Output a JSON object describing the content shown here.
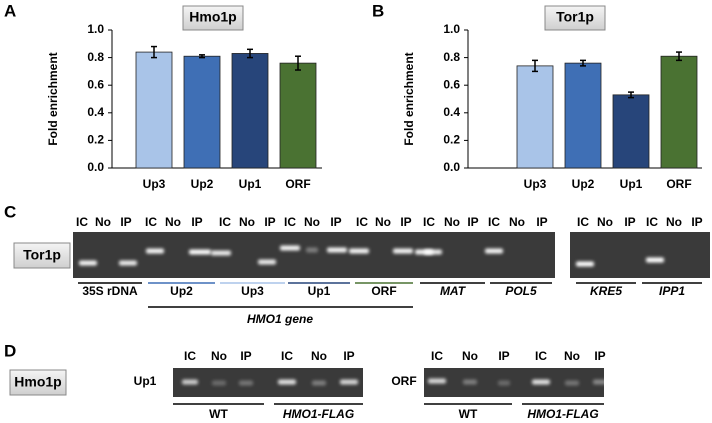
{
  "chart_data": [
    {
      "type": "bar",
      "panel": "A",
      "title": "Hmo1p",
      "ylabel": "Fold enrichment",
      "categories": [
        "Up3",
        "Up2",
        "Up1",
        "ORF"
      ],
      "values": [
        0.84,
        0.81,
        0.83,
        0.76
      ],
      "errors": [
        0.04,
        0.01,
        0.03,
        0.05
      ],
      "colors": [
        "#a9c4e8",
        "#3f6fb5",
        "#27457a",
        "#4a7232"
      ],
      "ylim": [
        0,
        1
      ],
      "yticks": [
        {
          "value": 0,
          "label": "0.0"
        },
        {
          "value": 0.2,
          "label": "0.2"
        },
        {
          "value": 0.4,
          "label": "0.4"
        },
        {
          "value": 0.6,
          "label": "0.6"
        },
        {
          "value": 0.8,
          "label": "0.8"
        },
        {
          "value": 1,
          "label": "1.0"
        }
      ]
    },
    {
      "type": "bar",
      "panel": "B",
      "title": "Tor1p",
      "ylabel": "Fold enrichment",
      "categories": [
        "Up3",
        "Up2",
        "Up1",
        "ORF"
      ],
      "values": [
        0.74,
        0.76,
        0.53,
        0.81
      ],
      "errors": [
        0.04,
        0.02,
        0.02,
        0.03
      ],
      "colors": [
        "#a9c4e8",
        "#3f6fb5",
        "#27457a",
        "#4a7232"
      ],
      "ylim": [
        0,
        1
      ],
      "yticks": [
        {
          "value": 0,
          "label": "0.0"
        },
        {
          "value": 0.2,
          "label": "0.2"
        },
        {
          "value": 0.4,
          "label": "0.4"
        },
        {
          "value": 0.6,
          "label": "0.6"
        },
        {
          "value": 0.8,
          "label": "0.8"
        },
        {
          "value": 1,
          "label": "1.0"
        }
      ]
    }
  ],
  "panel_c": {
    "panel": "C",
    "protein": "Tor1p",
    "lanes": [
      "IC",
      "No",
      "IP",
      "IC",
      "No",
      "IP",
      "IC",
      "No",
      "IP",
      "IC",
      "No",
      "IP",
      "IC",
      "No",
      "IP",
      "IC",
      "No",
      "IP",
      "IC",
      "No",
      "IP"
    ],
    "lanes_2": [
      "IC",
      "No",
      "IP",
      "IC",
      "No",
      "IP"
    ],
    "groups": [
      "35S rDNA",
      "Up2",
      "Up3",
      "Up1",
      "ORF",
      "MAT",
      "POL5",
      "KRE5",
      "IPP1"
    ],
    "gene": "HMO1 gene"
  },
  "panel_d": {
    "panel": "D",
    "protein": "Hmo1p",
    "region_1": "Up1",
    "region_2": "ORF",
    "lanes": [
      "IC",
      "No",
      "IP",
      "IC",
      "No",
      "IP"
    ],
    "lanes_2": [
      "IC",
      "No",
      "IP",
      "IC",
      "No",
      "IP"
    ],
    "strains": [
      "WT",
      "HMO1-FLAG",
      "WT",
      "HMO1-FLAG"
    ]
  }
}
